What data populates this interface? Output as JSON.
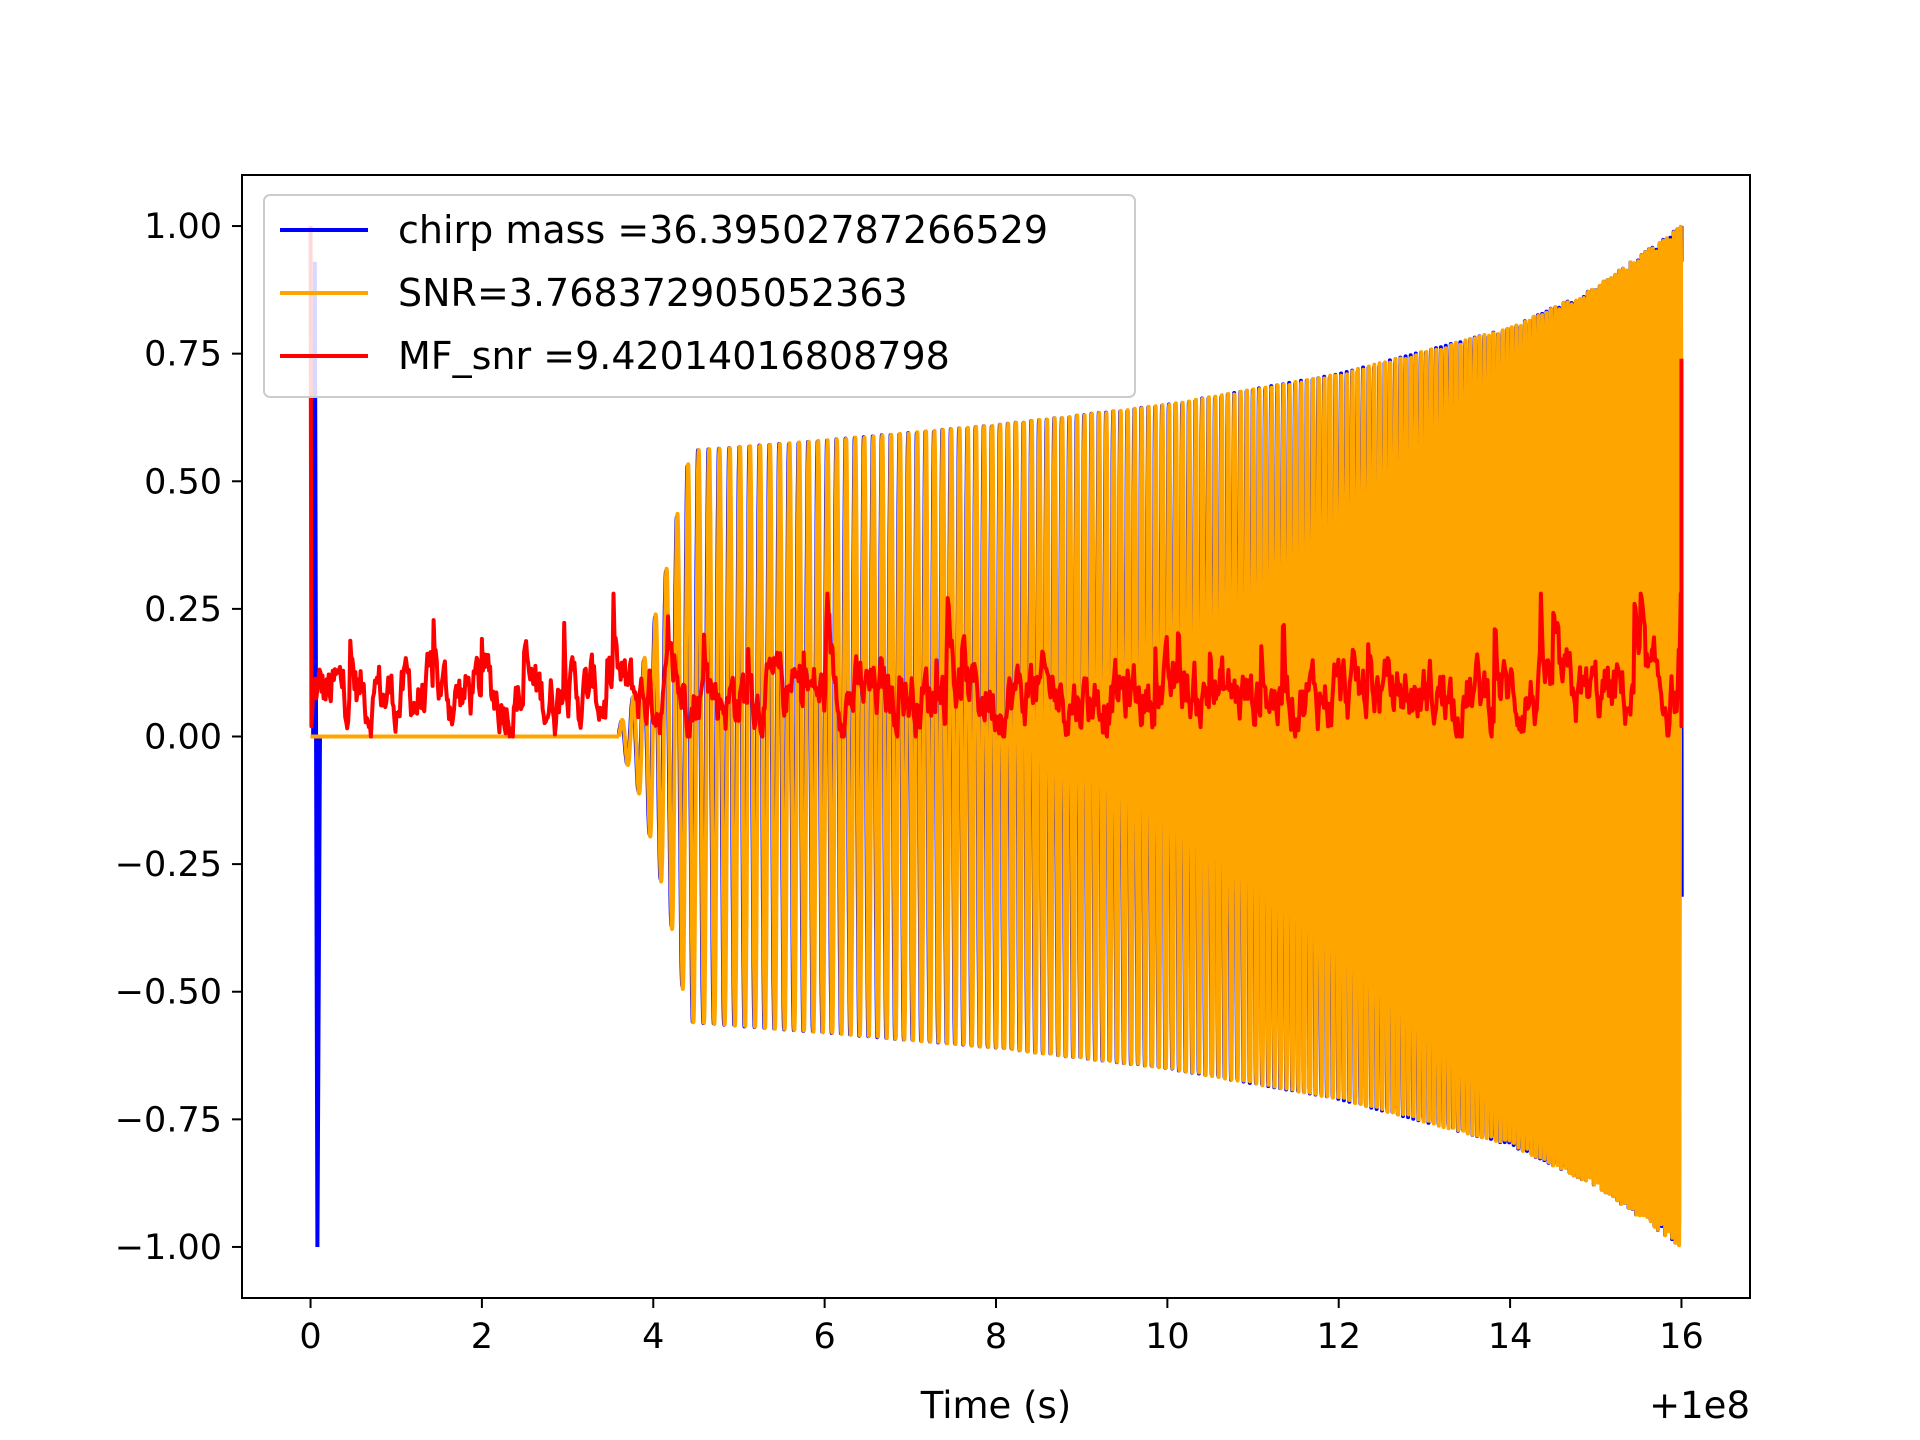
{
  "chart_data": {
    "type": "line",
    "title": "",
    "xlabel": "Time (s)",
    "ylabel": "",
    "x_offset_label": "+1e8",
    "xlim": [
      -0.8,
      16.8
    ],
    "ylim": [
      -1.1,
      1.1
    ],
    "grid": false,
    "legend_position": "top-left",
    "x_ticks": [
      0,
      2,
      4,
      6,
      8,
      10,
      12,
      14,
      16
    ],
    "x_tick_labels": [
      "0",
      "2",
      "4",
      "6",
      "8",
      "10",
      "12",
      "14",
      "16"
    ],
    "y_ticks": [
      1.0,
      0.75,
      0.5,
      0.25,
      0.0,
      -0.25,
      -0.5,
      -0.75,
      -1.0
    ],
    "y_tick_labels": [
      "1.00",
      "0.75",
      "0.50",
      "0.25",
      "0.00",
      "−0.25",
      "−0.50",
      "−0.75",
      "−1.00"
    ],
    "series": [
      {
        "name": "chirp mass =36.39502787266529",
        "color": "#0000ff",
        "kind": "chirp",
        "start_time": 3.6,
        "end_time": 16.0,
        "spike_time": 0.03,
        "spike_values": [
          0.93,
          -1.0
        ],
        "envelope": [
          [
            3.6,
            0.02
          ],
          [
            3.8,
            0.09
          ],
          [
            4.0,
            0.22
          ],
          [
            4.2,
            0.36
          ],
          [
            4.35,
            0.5
          ],
          [
            4.45,
            0.56
          ],
          [
            6.0,
            0.58
          ],
          [
            8.0,
            0.61
          ],
          [
            10.0,
            0.65
          ],
          [
            12.0,
            0.71
          ],
          [
            14.0,
            0.8
          ],
          [
            15.0,
            0.88
          ],
          [
            15.5,
            0.94
          ],
          [
            16.0,
            1.0
          ]
        ]
      },
      {
        "name": "SNR=3.768372905052363",
        "color": "#ffa500",
        "kind": "chirp",
        "start_time": 3.6,
        "end_time": 16.0,
        "envelope": [
          [
            3.6,
            0.02
          ],
          [
            3.8,
            0.09
          ],
          [
            4.0,
            0.22
          ],
          [
            4.2,
            0.36
          ],
          [
            4.35,
            0.5
          ],
          [
            4.45,
            0.56
          ],
          [
            6.0,
            0.58
          ],
          [
            8.0,
            0.61
          ],
          [
            10.0,
            0.65
          ],
          [
            12.0,
            0.71
          ],
          [
            14.0,
            0.8
          ],
          [
            15.0,
            0.88
          ],
          [
            15.5,
            0.94
          ],
          [
            16.0,
            1.0
          ]
        ]
      },
      {
        "name": "MF_snr =9.42014016808798",
        "color": "#ff0000",
        "kind": "noise",
        "start_time": 0.0,
        "end_time": 16.0,
        "start_spike": 1.0,
        "end_spike": 0.74,
        "baseline": 0.08,
        "range": [
          0.0,
          0.28
        ]
      }
    ]
  }
}
